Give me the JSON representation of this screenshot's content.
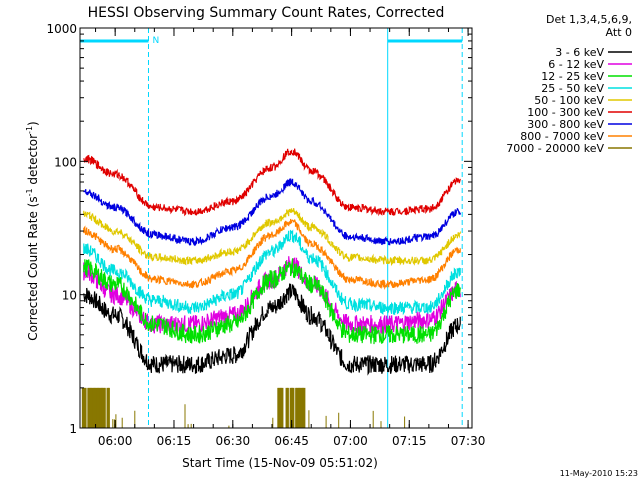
{
  "chart_data": {
    "type": "line",
    "title": "HESSI Observing Summary Count Rates, Corrected",
    "xlabel": "Start Time (15-Nov-09 05:51:02)",
    "ylabel_main": "Corrected Count Rate (s",
    "ylabel_sup1": "-1",
    "ylabel_mid": " detector",
    "ylabel_sup2": "-1",
    "ylabel_end": ")",
    "y_scale": "log",
    "ylim": [
      1,
      1000
    ],
    "xlim": [
      "05:51:02",
      "07:31:00"
    ],
    "grid": false,
    "legend_placement": "right",
    "legend_header": [
      "Det 1,3,4,5,6,9,",
      "Att 0"
    ],
    "footer_date": "11-May-2010 15:23",
    "x_ticks": [
      "06:00",
      "06:15",
      "06:30",
      "06:45",
      "07:00",
      "07:15",
      "07:30"
    ],
    "y_ticks": [
      {
        "value": 1,
        "label": "1"
      },
      {
        "value": 10,
        "label": "10"
      },
      {
        "value": 100,
        "label": "100"
      },
      {
        "value": 1000,
        "label": "1000"
      }
    ],
    "overlays": {
      "color": "#00d8ff",
      "periods": [
        {
          "start": "05:51:02",
          "end": "06:08:30",
          "flag": "N"
        },
        {
          "start": "07:09:30",
          "end": "07:28:30",
          "flag": ""
        }
      ]
    },
    "time_samples": [
      "05:52",
      "06:00",
      "06:10",
      "06:20",
      "06:30",
      "06:40",
      "06:45",
      "06:50",
      "07:00",
      "07:10",
      "07:20",
      "07:28"
    ],
    "series": [
      {
        "name": "3 - 6 keV",
        "color": "#000000",
        "values": [
          10,
          7,
          3,
          3,
          3.5,
          8,
          10.5,
          7,
          3,
          3,
          3,
          6
        ]
      },
      {
        "name": "6 - 12 keV",
        "color": "#e000e0",
        "values": [
          15,
          10,
          6,
          6,
          7,
          13,
          17,
          12,
          6,
          6,
          6.5,
          11
        ]
      },
      {
        "name": "12 - 25 keV",
        "color": "#00e000",
        "values": [
          16,
          12,
          6,
          5,
          6,
          13,
          16,
          12,
          5,
          5,
          5,
          11
        ]
      },
      {
        "name": "25 - 50 keV",
        "color": "#00e0e0",
        "values": [
          22,
          15,
          9,
          8,
          10,
          21,
          28,
          19,
          8.5,
          8,
          8,
          15
        ]
      },
      {
        "name": "50 - 100 keV",
        "color": "#e0c800",
        "values": [
          40,
          30,
          19,
          18,
          21,
          35,
          42,
          32,
          19,
          18,
          18,
          28
        ]
      },
      {
        "name": "100 - 300 keV",
        "color": "#e00000",
        "values": [
          105,
          80,
          45,
          42,
          50,
          90,
          120,
          85,
          45,
          42,
          44,
          72
        ]
      },
      {
        "name": "300 - 800 keV",
        "color": "#0000e0",
        "values": [
          60,
          45,
          28,
          25,
          32,
          55,
          70,
          50,
          27,
          25,
          27,
          42
        ]
      },
      {
        "name": "800 - 7000 keV",
        "color": "#ff8000",
        "values": [
          30,
          22,
          13,
          12,
          15,
          28,
          35,
          24,
          13,
          12,
          13,
          22
        ]
      },
      {
        "name": "7000 - 20000 keV",
        "color": "#887700",
        "values": [
          2,
          1,
          1,
          1,
          1,
          1.5,
          2,
          1.5,
          1,
          1,
          1,
          1
        ]
      }
    ]
  }
}
